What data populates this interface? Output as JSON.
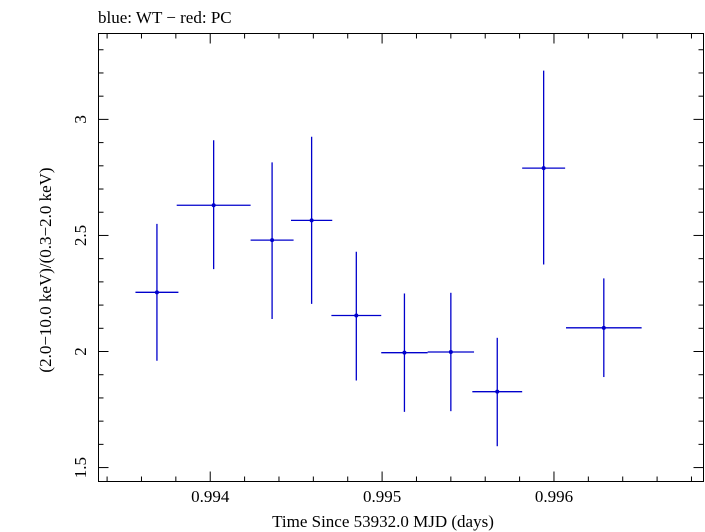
{
  "chart_data": {
    "type": "scatter",
    "title": "blue: WT − red: PC",
    "xlabel": "Time Since 53932.0 MJD (days)",
    "ylabel": "(2.0−10.0 keV)/(0.3−2.0 keV)",
    "xlim": [
      0.99335,
      0.99687
    ],
    "ylim": [
      1.44,
      3.37
    ],
    "x_ticks": [
      0.994,
      0.995,
      0.996
    ],
    "x_tick_labels": [
      "0.994",
      "0.995",
      "0.996"
    ],
    "y_ticks": [
      1.5,
      2,
      2.5,
      3
    ],
    "y_tick_labels": [
      "1.5",
      "2",
      "2.5",
      "3"
    ],
    "grid": false,
    "series": [
      {
        "name": "WT",
        "color": "#0000cc",
        "points": [
          {
            "x": 0.99369,
            "xerr": 0.000125,
            "y": 2.255,
            "yerr_low": 0.295,
            "yerr_high": 0.295
          },
          {
            "x": 0.99402,
            "xerr": 0.000215,
            "y": 2.63,
            "yerr_low": 0.275,
            "yerr_high": 0.28
          },
          {
            "x": 0.99436,
            "xerr": 0.000125,
            "y": 2.48,
            "yerr_low": 0.34,
            "yerr_high": 0.335
          },
          {
            "x": 0.99459,
            "xerr": 0.00012,
            "y": 2.565,
            "yerr_low": 0.36,
            "yerr_high": 0.36
          },
          {
            "x": 0.99485,
            "xerr": 0.000145,
            "y": 2.155,
            "yerr_low": 0.28,
            "yerr_high": 0.275
          },
          {
            "x": 0.99513,
            "xerr": 0.000135,
            "y": 1.995,
            "yerr_low": 0.255,
            "yerr_high": 0.255
          },
          {
            "x": 0.9954,
            "xerr": 0.000135,
            "y": 1.998,
            "yerr_low": 0.255,
            "yerr_high": 0.255
          },
          {
            "x": 0.99567,
            "xerr": 0.000145,
            "y": 1.827,
            "yerr_low": 0.235,
            "yerr_high": 0.232
          },
          {
            "x": 0.99594,
            "xerr": 0.000125,
            "y": 2.79,
            "yerr_low": 0.415,
            "yerr_high": 0.42
          },
          {
            "x": 0.99629,
            "xerr": 0.00022,
            "y": 2.102,
            "yerr_low": 0.212,
            "yerr_high": 0.213
          }
        ]
      }
    ]
  }
}
